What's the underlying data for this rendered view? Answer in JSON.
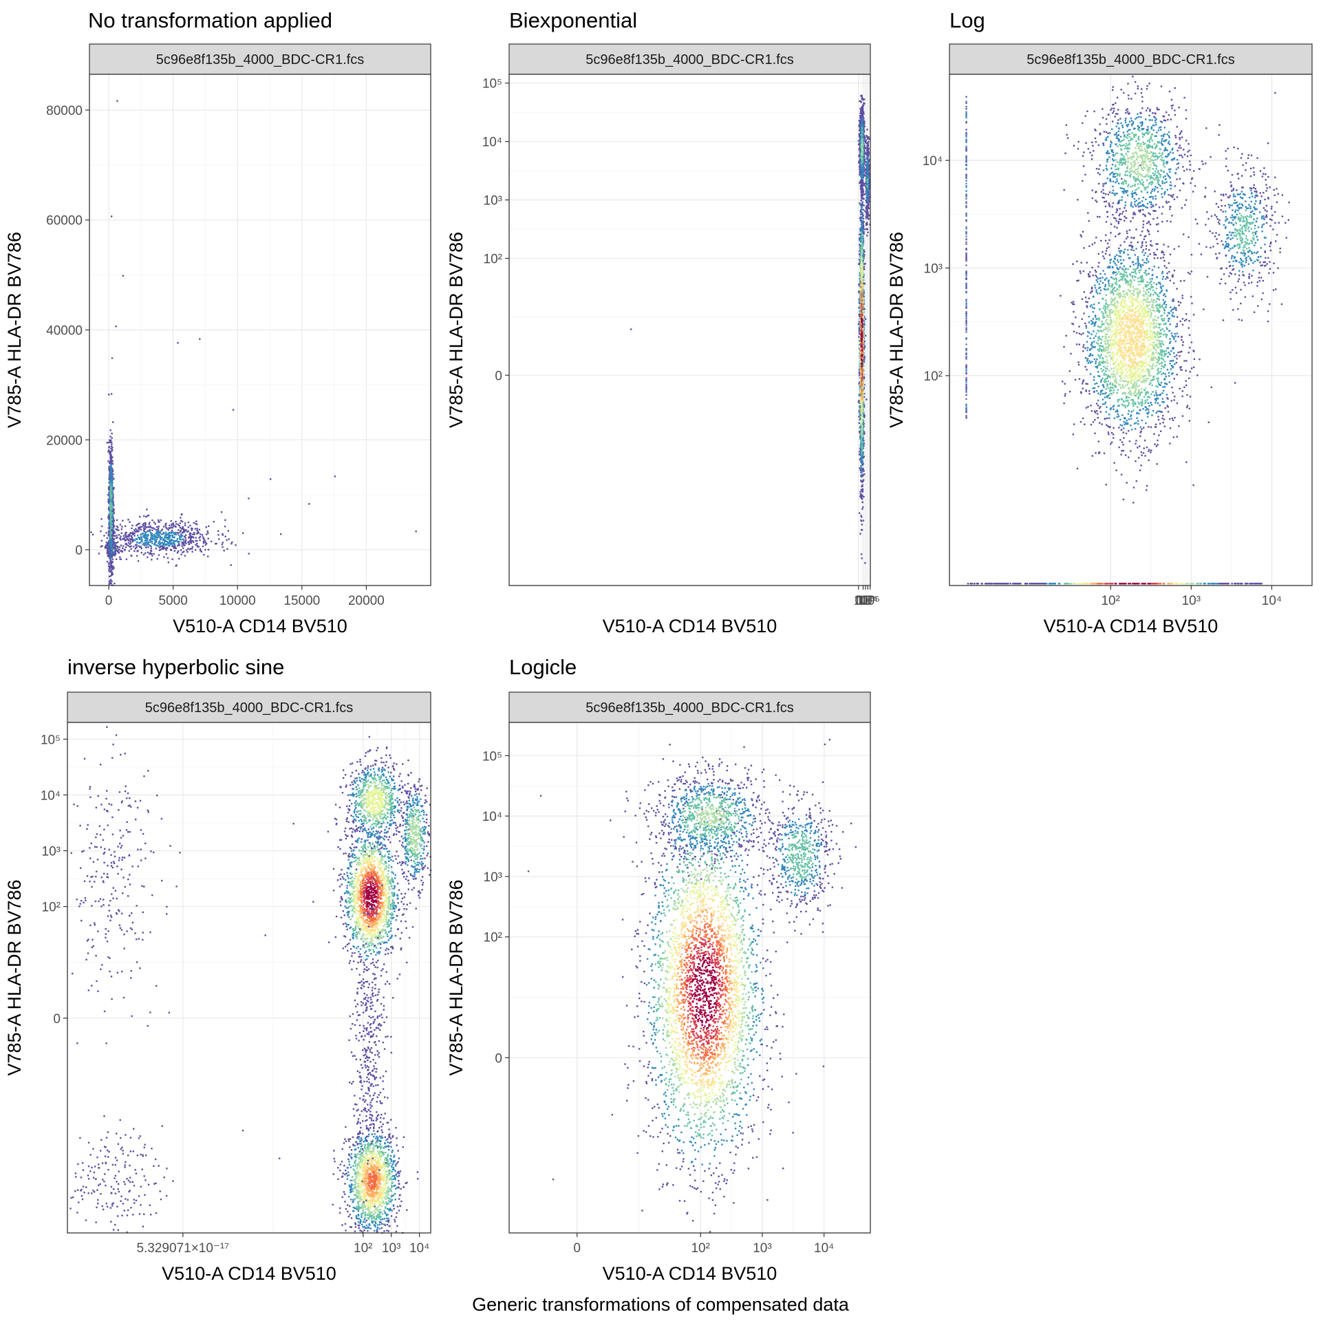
{
  "figure": {
    "caption": "Generic transformations of compensated data",
    "palette": [
      "#5e4fa2",
      "#3288bd",
      "#66c2a5",
      "#abdda4",
      "#e6f598",
      "#fee08b",
      "#fdae61",
      "#f46d43",
      "#d53e4f",
      "#9e0142"
    ]
  },
  "chart_data": [
    {
      "type": "scatter",
      "title": "No transformation applied",
      "strip": "5c96e8f135b_4000_BDC-CR1.fcs",
      "xlabel": "V510-A CD14 BV510",
      "ylabel": "V785-A HLA-DR BV786",
      "scale": "linear",
      "xlim": [
        -1500,
        25000
      ],
      "ylim": [
        -6500,
        86500
      ],
      "xticks": [
        {
          "v": 0,
          "label": "0"
        },
        {
          "v": 5000,
          "label": "5000"
        },
        {
          "v": 10000,
          "label": "10000"
        },
        {
          "v": 15000,
          "label": "15000"
        },
        {
          "v": 20000,
          "label": "20000"
        }
      ],
      "yticks": [
        {
          "v": 0,
          "label": "0"
        },
        {
          "v": 20000,
          "label": "20000"
        },
        {
          "v": 40000,
          "label": "40000"
        },
        {
          "v": 60000,
          "label": "60000"
        },
        {
          "v": 80000,
          "label": "80000"
        }
      ],
      "populations": [
        {
          "x": 150,
          "y": 400,
          "sx": 120,
          "sy": 500,
          "n": 1600,
          "peak": 1.0
        },
        {
          "x": 120,
          "y": 7000,
          "sx": 90,
          "sy": 6000,
          "n": 900,
          "peak": 0.3
        },
        {
          "x": 3800,
          "y": 2200,
          "sx": 2200,
          "sy": 1600,
          "n": 750,
          "peak": 0.15
        }
      ],
      "outliers": [
        [
          600,
          81800
        ],
        [
          150,
          60800
        ],
        [
          1050,
          50000
        ],
        [
          500,
          40800
        ],
        [
          200,
          35000
        ],
        [
          5300,
          37800
        ],
        [
          7000,
          38500
        ],
        [
          23800,
          3500
        ],
        [
          17500,
          13500
        ],
        [
          15500,
          8500
        ],
        [
          13300,
          3000
        ],
        [
          12500,
          13000
        ],
        [
          8700,
          7000
        ],
        [
          6800,
          4000
        ],
        [
          10800,
          9500
        ],
        [
          9600,
          25600
        ]
      ]
    },
    {
      "type": "scatter",
      "title": "Biexponential",
      "strip": "5c96e8f135b_4000_BDC-CR1.fcs",
      "xlabel": "V510-A CD14 BV510",
      "ylabel": "V785-A HLA-DR BV786",
      "scale": "biexponential",
      "xlim": [
        -150,
        5.1
      ],
      "ylim": [
        -3.6,
        5.15
      ],
      "xticks": [
        {
          "v": 0,
          "label": "0"
        },
        {
          "v": 2,
          "label": "10²"
        },
        {
          "v": 3,
          "label": "10³"
        },
        {
          "v": 4,
          "label": "10⁴"
        },
        {
          "v": 5,
          "label": "10⁵"
        }
      ],
      "yticks": [
        {
          "v": 0,
          "label": "0"
        },
        {
          "v": 2,
          "label": "10²"
        },
        {
          "v": 3,
          "label": "10³"
        },
        {
          "v": 4,
          "label": "10⁴"
        },
        {
          "v": 5,
          "label": "10⁵"
        }
      ],
      "populations": [
        {
          "x": 1.1,
          "y": 0.6,
          "sx": 0.45,
          "sy": 1.1,
          "n": 2600,
          "peak": 1.0
        },
        {
          "x": 1.2,
          "y": 3.9,
          "sx": 0.5,
          "sy": 0.35,
          "n": 900,
          "peak": 0.35
        },
        {
          "x": 3.6,
          "y": 3.35,
          "sx": 0.35,
          "sy": 0.35,
          "n": 450,
          "peak": 0.22
        }
      ],
      "outliers": [
        [
          -98,
          0.8
        ],
        [
          2.5,
          -3.2
        ],
        [
          5.2,
          -3.4
        ],
        [
          0.5,
          -2.7
        ]
      ]
    },
    {
      "type": "scatter",
      "title": "Log",
      "strip": "5c96e8f135b_4000_BDC-CR1.fcs",
      "xlabel": "V510-A CD14 BV510",
      "ylabel": "V785-A HLA-DR BV786",
      "scale": "log",
      "xlim": [
        0.0,
        4.5
      ],
      "ylim": [
        0.05,
        4.8
      ],
      "xticks": [
        {
          "v": 2,
          "label": "10²"
        },
        {
          "v": 3,
          "label": "10³"
        },
        {
          "v": 4,
          "label": "10⁴"
        }
      ],
      "yticks": [
        {
          "v": 2,
          "label": "10²"
        },
        {
          "v": 3,
          "label": "10³"
        },
        {
          "v": 4,
          "label": "10⁴"
        }
      ],
      "populations": [
        {
          "x": 2.25,
          "y": 2.35,
          "sx": 0.3,
          "sy": 0.45,
          "n": 2600,
          "peak": 0.6
        },
        {
          "x": 2.35,
          "y": 4.0,
          "sx": 0.3,
          "sy": 0.28,
          "n": 1000,
          "peak": 0.35
        },
        {
          "x": 3.65,
          "y": 3.35,
          "sx": 0.2,
          "sy": 0.3,
          "n": 550,
          "peak": 0.25
        }
      ],
      "axis_events": {
        "vertical_x": 0.2,
        "horizontal_y": 0.05
      },
      "outliers": []
    },
    {
      "type": "scatter",
      "title": "inverse hyperbolic sine",
      "strip": "5c96e8f135b_4000_BDC-CR1.fcs",
      "xlabel": "V510-A CD14 BV510",
      "ylabel": "V785-A HLA-DR BV786",
      "scale": "arcsinh",
      "xlim": [
        -8.5,
        4.4
      ],
      "ylim": [
        -3.85,
        5.3
      ],
      "xticks": [
        {
          "v": -4.4,
          "label": "5.329071×10⁻¹⁷"
        },
        {
          "v": 2,
          "label": "10²"
        },
        {
          "v": 3,
          "label": "10³"
        },
        {
          "v": 4,
          "label": "10⁴"
        }
      ],
      "yticks": [
        {
          "v": 0,
          "label": "0"
        },
        {
          "v": 2,
          "label": "10²"
        },
        {
          "v": 3,
          "label": "10³"
        },
        {
          "v": 4,
          "label": "10⁴"
        },
        {
          "v": 5,
          "label": "10⁵"
        }
      ],
      "populations": [
        {
          "x": 2.25,
          "y": 2.2,
          "sx": 0.45,
          "sy": 0.55,
          "n": 1700,
          "peak": 1.0
        },
        {
          "x": 2.4,
          "y": 3.9,
          "sx": 0.5,
          "sy": 0.35,
          "n": 800,
          "peak": 0.5
        },
        {
          "x": 3.8,
          "y": 3.3,
          "sx": 0.25,
          "sy": 0.45,
          "n": 450,
          "peak": 0.4
        },
        {
          "x": 2.3,
          "y": -2.9,
          "sx": 0.45,
          "sy": 0.45,
          "n": 1500,
          "peak": 0.75
        },
        {
          "x": 2.2,
          "y": -0.6,
          "sx": 0.3,
          "sy": 1.1,
          "n": 350,
          "peak": 0.1
        },
        {
          "x": -7.0,
          "y": 2.6,
          "sx": 0.9,
          "sy": 1.1,
          "n": 260,
          "peak": 0.05
        },
        {
          "x": -7.0,
          "y": -2.9,
          "sx": 0.9,
          "sy": 0.45,
          "n": 200,
          "peak": 0.05
        }
      ],
      "outliers": [
        [
          -2.3,
          -2.0
        ],
        [
          -1.5,
          1.5
        ],
        [
          -0.5,
          3.5
        ],
        [
          -1.0,
          -2.5
        ],
        [
          0.2,
          2.1
        ]
      ]
    },
    {
      "type": "scatter",
      "title": "Logicle",
      "strip": "5c96e8f135b_4000_BDC-CR1.fcs",
      "xlabel": "V510-A CD14 BV510",
      "ylabel": "V785-A HLA-DR BV786",
      "scale": "logicle",
      "xlim": [
        -1.1,
        4.75
      ],
      "ylim": [
        -2.9,
        5.55
      ],
      "xticks": [
        {
          "v": 0,
          "label": "0"
        },
        {
          "v": 2,
          "label": "10²"
        },
        {
          "v": 3,
          "label": "10³"
        },
        {
          "v": 4,
          "label": "10⁴"
        }
      ],
      "yticks": [
        {
          "v": 0,
          "label": "0"
        },
        {
          "v": 2,
          "label": "10²"
        },
        {
          "v": 3,
          "label": "10³"
        },
        {
          "v": 4,
          "label": "10⁴"
        },
        {
          "v": 5,
          "label": "10⁵"
        }
      ],
      "populations": [
        {
          "x": 2.05,
          "y": 1.1,
          "sx": 0.45,
          "sy": 1.35,
          "n": 3400,
          "peak": 1.0
        },
        {
          "x": 2.15,
          "y": 4.0,
          "sx": 0.45,
          "sy": 0.35,
          "n": 900,
          "peak": 0.35
        },
        {
          "x": 3.6,
          "y": 3.35,
          "sx": 0.25,
          "sy": 0.45,
          "n": 600,
          "peak": 0.3
        }
      ],
      "outliers": [
        [
          -0.6,
          4.35
        ],
        [
          4.0,
          5.2
        ],
        [
          -0.4,
          -2.0
        ],
        [
          4.5,
          3.5
        ],
        [
          -0.8,
          3.1
        ]
      ]
    }
  ]
}
